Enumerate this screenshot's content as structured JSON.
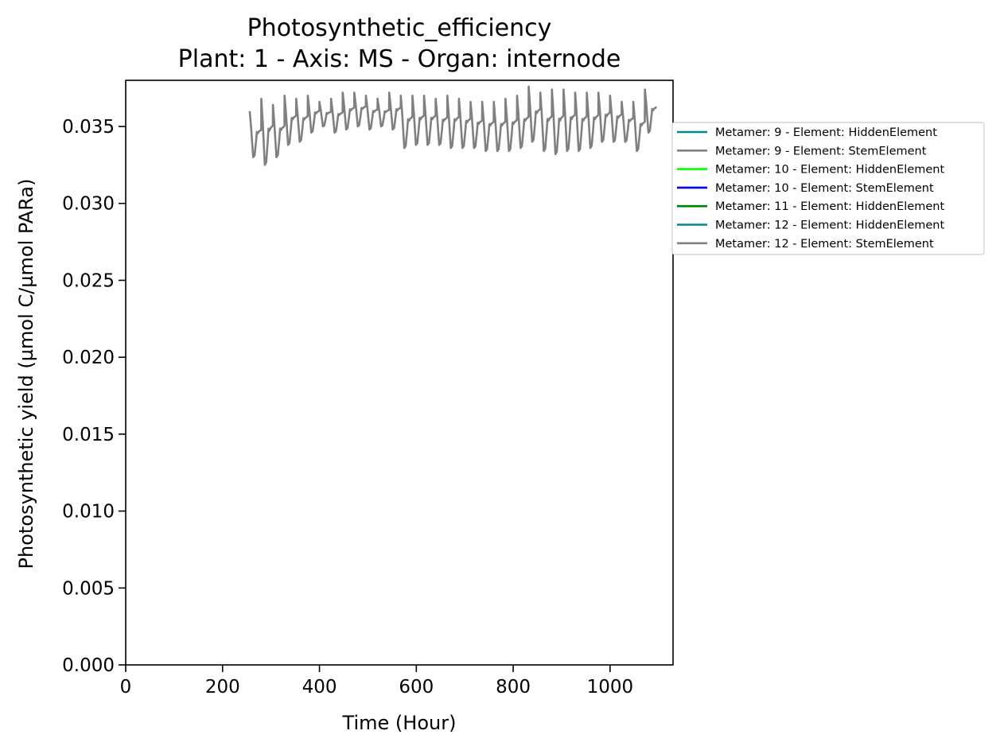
{
  "chart_data": {
    "type": "line",
    "title": "Photosynthetic_efficiency",
    "subtitle": "Plant: 1 - Axis: MS - Organ: internode",
    "xlabel": "Time (Hour)",
    "ylabel": "Photosynthetic yield (µmol C/µmol PARa)",
    "xlim": [
      0,
      1130
    ],
    "ylim": [
      0,
      0.038
    ],
    "xticks": [
      0,
      200,
      400,
      600,
      800,
      1000
    ],
    "xtick_labels": [
      "0",
      "200",
      "400",
      "600",
      "800",
      "1000"
    ],
    "yticks": [
      0,
      0.005,
      0.01,
      0.015,
      0.02,
      0.025,
      0.03,
      0.035
    ],
    "ytick_labels": [
      "0.000",
      "0.005",
      "0.010",
      "0.015",
      "0.020",
      "0.025",
      "0.030",
      "0.035"
    ],
    "grid": false,
    "legend_position": "right, outside plot",
    "legend": [
      {
        "label": "Metamer: 9 - Element: HiddenElement",
        "color": "#008b8b"
      },
      {
        "label": "Metamer: 9 - Element: StemElement",
        "color": "#808080"
      },
      {
        "label": "Metamer: 10 - Element: HiddenElement",
        "color": "#00ff00"
      },
      {
        "label": "Metamer: 10 - Element: StemElement",
        "color": "#0000ff"
      },
      {
        "label": "Metamer: 11 - Element: HiddenElement",
        "color": "#008000"
      },
      {
        "label": "Metamer: 12 - Element: HiddenElement",
        "color": "#008b8b"
      },
      {
        "label": "Metamer: 12 - Element: StemElement",
        "color": "#808080"
      }
    ],
    "series": [
      {
        "name": "Metamer: 12 - Element: StemElement",
        "color": "#808080",
        "cycle_period": 24,
        "cycles": [
          {
            "start": 256,
            "max": 0.036,
            "min": 0.033
          },
          {
            "start": 280,
            "max": 0.0368,
            "min": 0.0325
          },
          {
            "start": 304,
            "max": 0.0364,
            "min": 0.033
          },
          {
            "start": 328,
            "max": 0.037,
            "min": 0.0338
          },
          {
            "start": 352,
            "max": 0.0368,
            "min": 0.034
          },
          {
            "start": 376,
            "max": 0.037,
            "min": 0.0346
          },
          {
            "start": 400,
            "max": 0.0366,
            "min": 0.035
          },
          {
            "start": 424,
            "max": 0.0368,
            "min": 0.0346
          },
          {
            "start": 448,
            "max": 0.0372,
            "min": 0.0348
          },
          {
            "start": 472,
            "max": 0.0372,
            "min": 0.035
          },
          {
            "start": 496,
            "max": 0.037,
            "min": 0.0348
          },
          {
            "start": 520,
            "max": 0.0368,
            "min": 0.035
          },
          {
            "start": 544,
            "max": 0.0372,
            "min": 0.0348
          },
          {
            "start": 568,
            "max": 0.037,
            "min": 0.0336
          },
          {
            "start": 592,
            "max": 0.037,
            "min": 0.0338
          },
          {
            "start": 616,
            "max": 0.037,
            "min": 0.0338
          },
          {
            "start": 640,
            "max": 0.0368,
            "min": 0.0338
          },
          {
            "start": 664,
            "max": 0.037,
            "min": 0.0336
          },
          {
            "start": 688,
            "max": 0.0368,
            "min": 0.0336
          },
          {
            "start": 712,
            "max": 0.0366,
            "min": 0.0336
          },
          {
            "start": 736,
            "max": 0.0366,
            "min": 0.0334
          },
          {
            "start": 760,
            "max": 0.0366,
            "min": 0.0334
          },
          {
            "start": 784,
            "max": 0.0368,
            "min": 0.0334
          },
          {
            "start": 808,
            "max": 0.037,
            "min": 0.0336
          },
          {
            "start": 832,
            "max": 0.0376,
            "min": 0.034
          },
          {
            "start": 856,
            "max": 0.0372,
            "min": 0.0334
          },
          {
            "start": 880,
            "max": 0.0374,
            "min": 0.0332
          },
          {
            "start": 904,
            "max": 0.0374,
            "min": 0.0334
          },
          {
            "start": 928,
            "max": 0.0372,
            "min": 0.0334
          },
          {
            "start": 952,
            "max": 0.0372,
            "min": 0.0336
          },
          {
            "start": 976,
            "max": 0.0372,
            "min": 0.034
          },
          {
            "start": 1000,
            "max": 0.037,
            "min": 0.034
          },
          {
            "start": 1024,
            "max": 0.0366,
            "min": 0.034
          },
          {
            "start": 1048,
            "max": 0.0366,
            "min": 0.0334
          },
          {
            "start": 1072,
            "max": 0.0374,
            "min": 0.0346
          }
        ]
      }
    ]
  }
}
